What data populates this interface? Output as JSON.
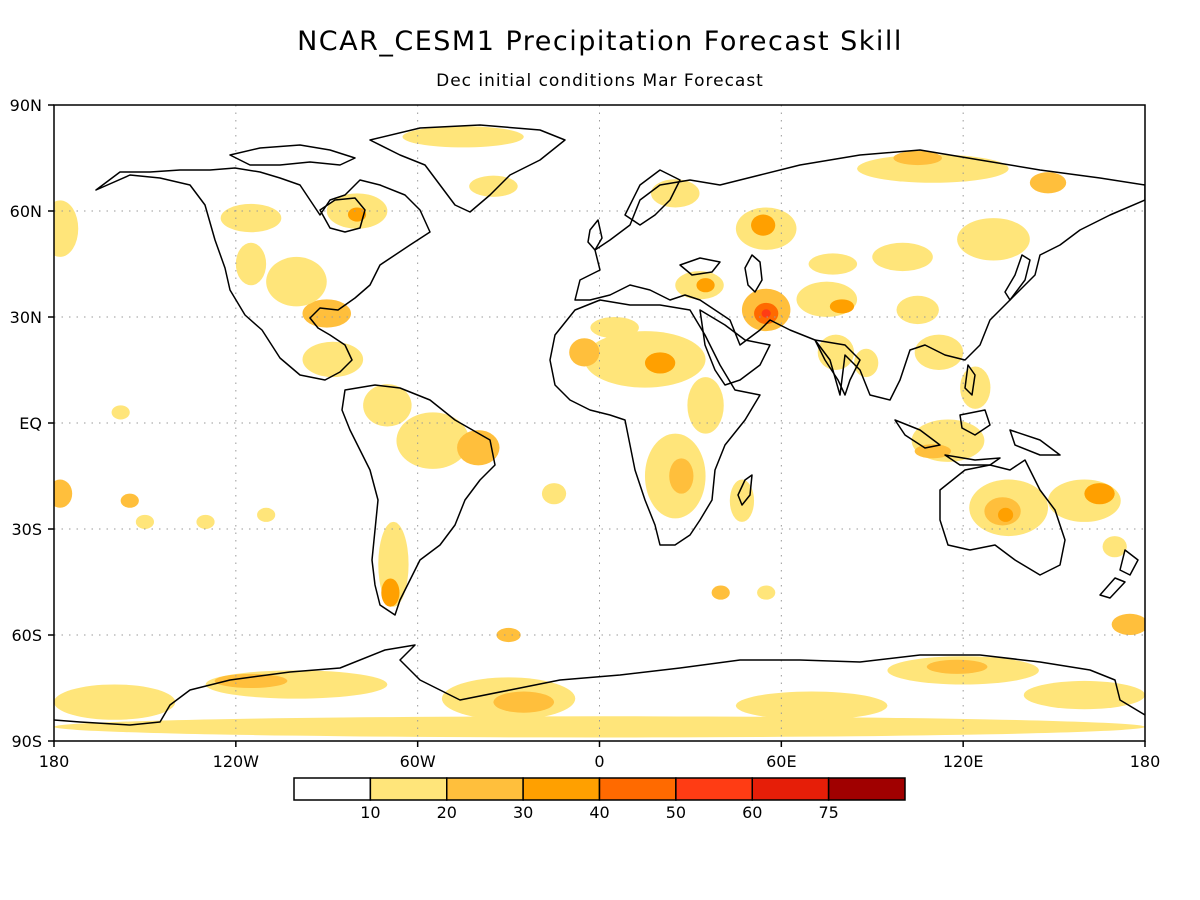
{
  "title": "NCAR_CESM1 Precipitation Forecast Skill",
  "subtitle": "Dec initial conditions  Mar Forecast",
  "map": {
    "projection": "equirectangular",
    "lon_range": [
      -180,
      180
    ],
    "lat_range": [
      -90,
      90
    ],
    "grid": "dotted",
    "lat_labels": [
      {
        "lat": 90,
        "text": "90N"
      },
      {
        "lat": 60,
        "text": "60N"
      },
      {
        "lat": 30,
        "text": "30N"
      },
      {
        "lat": 0,
        "text": "EQ"
      },
      {
        "lat": -30,
        "text": "30S"
      },
      {
        "lat": -60,
        "text": "60S"
      },
      {
        "lat": -90,
        "text": "90S"
      }
    ],
    "lon_labels": [
      {
        "lon": -180,
        "text": "180"
      },
      {
        "lon": -120,
        "text": "120W"
      },
      {
        "lon": -60,
        "text": "60W"
      },
      {
        "lon": 0,
        "text": "0"
      },
      {
        "lon": 60,
        "text": "60E"
      },
      {
        "lon": 120,
        "text": "120E"
      },
      {
        "lon": 180,
        "text": "180"
      }
    ]
  },
  "colorbar": {
    "colors": [
      "#ffffff",
      "#ffe57a",
      "#ffbf3c",
      "#ffa000",
      "#ff6a00",
      "#ff3c14",
      "#e61e08",
      "#a00000"
    ],
    "labels": [
      "10",
      "20",
      "30",
      "40",
      "50",
      "60",
      "75"
    ]
  },
  "skill_regions": [
    {
      "name": "antarctic-band",
      "lon": 0,
      "lat": -86,
      "rlon": 180,
      "rlat": 3,
      "level": 1
    },
    {
      "name": "weddell",
      "lon": -30,
      "lat": -78,
      "rlon": 22,
      "rlat": 6,
      "level": 1
    },
    {
      "name": "weddell-core",
      "lon": -25,
      "lat": -79,
      "rlon": 10,
      "rlat": 3,
      "level": 2
    },
    {
      "name": "bellingshausen",
      "lon": -100,
      "lat": -74,
      "rlon": 30,
      "rlat": 4,
      "level": 1
    },
    {
      "name": "bellingshausen-core",
      "lon": -115,
      "lat": -73,
      "rlon": 12,
      "rlat": 2,
      "level": 2
    },
    {
      "name": "ross-rim",
      "lon": -160,
      "lat": -79,
      "rlon": 20,
      "rlat": 5,
      "level": 1
    },
    {
      "name": "east-antarctica",
      "lon": 120,
      "lat": -70,
      "rlon": 25,
      "rlat": 4,
      "level": 1
    },
    {
      "name": "east-antarctica-core",
      "lon": 118,
      "lat": -69,
      "rlon": 10,
      "rlat": 2,
      "level": 2
    },
    {
      "name": "victoria-land",
      "lon": 160,
      "lat": -77,
      "rlon": 20,
      "rlat": 4,
      "level": 1
    },
    {
      "name": "amery",
      "lon": 70,
      "lat": -80,
      "rlon": 25,
      "rlat": 4,
      "level": 1
    },
    {
      "name": "australia",
      "lon": 135,
      "lat": -24,
      "rlon": 13,
      "rlat": 8,
      "level": 1
    },
    {
      "name": "australia-core",
      "lon": 133,
      "lat": -25,
      "rlon": 6,
      "rlat": 4,
      "level": 2
    },
    {
      "name": "australia-hot",
      "lon": 134,
      "lat": -26,
      "rlon": 2.5,
      "rlat": 2,
      "level": 3
    },
    {
      "name": "maritime-continent",
      "lon": 115,
      "lat": -5,
      "rlon": 12,
      "rlat": 6,
      "level": 1
    },
    {
      "name": "java",
      "lon": 110,
      "lat": -8,
      "rlon": 6,
      "rlat": 2,
      "level": 2
    },
    {
      "name": "philippines",
      "lon": 124,
      "lat": 10,
      "rlon": 5,
      "rlat": 6,
      "level": 1
    },
    {
      "name": "south-china",
      "lon": 112,
      "lat": 20,
      "rlon": 8,
      "rlat": 5,
      "level": 1
    },
    {
      "name": "coral-sea",
      "lon": 160,
      "lat": -22,
      "rlon": 12,
      "rlat": 6,
      "level": 1
    },
    {
      "name": "coral-sea-core",
      "lon": 165,
      "lat": -20,
      "rlon": 5,
      "rlat": 3,
      "level": 3
    },
    {
      "name": "iran",
      "lon": 55,
      "lat": 32,
      "rlon": 8,
      "rlat": 6,
      "level": 2
    },
    {
      "name": "iran-core",
      "lon": 55,
      "lat": 31,
      "rlon": 4,
      "rlat": 3,
      "level": 4
    },
    {
      "name": "iran-hot",
      "lon": 55,
      "lat": 31,
      "rlon": 1.5,
      "rlat": 1.2,
      "level": 5
    },
    {
      "name": "turkey",
      "lon": 33,
      "lat": 39,
      "rlon": 8,
      "rlat": 4,
      "level": 1
    },
    {
      "name": "turkey-core",
      "lon": 35,
      "lat": 39,
      "rlon": 3,
      "rlat": 2,
      "level": 3
    },
    {
      "name": "central-asia",
      "lon": 75,
      "lat": 35,
      "rlon": 10,
      "rlat": 5,
      "level": 1
    },
    {
      "name": "tibet",
      "lon": 80,
      "lat": 33,
      "rlon": 4,
      "rlat": 2,
      "level": 3
    },
    {
      "name": "kazakhstan",
      "lon": 77,
      "lat": 45,
      "rlon": 8,
      "rlat": 3,
      "level": 1
    },
    {
      "name": "russia-west",
      "lon": 55,
      "lat": 55,
      "rlon": 10,
      "rlat": 6,
      "level": 1
    },
    {
      "name": "russia-west-core",
      "lon": 54,
      "lat": 56,
      "rlon": 4,
      "rlat": 3,
      "level": 3
    },
    {
      "name": "scandinavia",
      "lon": 25,
      "lat": 65,
      "rlon": 8,
      "rlat": 4,
      "level": 1
    },
    {
      "name": "siberia-north",
      "lon": 110,
      "lat": 72,
      "rlon": 25,
      "rlat": 4,
      "level": 1
    },
    {
      "name": "taymyr",
      "lon": 105,
      "lat": 75,
      "rlon": 8,
      "rlat": 2,
      "level": 2
    },
    {
      "name": "kolyma",
      "lon": 148,
      "lat": 68,
      "rlon": 6,
      "rlat": 3,
      "level": 2
    },
    {
      "name": "russian-fareast",
      "lon": 130,
      "lat": 52,
      "rlon": 12,
      "rlat": 6,
      "level": 1
    },
    {
      "name": "north-africa",
      "lon": 15,
      "lat": 18,
      "rlon": 20,
      "rlat": 8,
      "level": 1
    },
    {
      "name": "sahel-core",
      "lon": 20,
      "lat": 17,
      "rlon": 5,
      "rlat": 3,
      "level": 3
    },
    {
      "name": "mali",
      "lon": -5,
      "lat": 20,
      "rlon": 5,
      "rlat": 4,
      "level": 2
    },
    {
      "name": "sahara",
      "lon": 5,
      "lat": 27,
      "rlon": 8,
      "rlat": 3,
      "level": 1
    },
    {
      "name": "east-africa",
      "lon": 35,
      "lat": 5,
      "rlon": 6,
      "rlat": 8,
      "level": 1
    },
    {
      "name": "southern-africa",
      "lon": 25,
      "lat": -15,
      "rlon": 10,
      "rlat": 12,
      "level": 1
    },
    {
      "name": "southern-africa-core",
      "lon": 27,
      "lat": -15,
      "rlon": 4,
      "rlat": 5,
      "level": 2
    },
    {
      "name": "madagascar",
      "lon": 47,
      "lat": -22,
      "rlon": 4,
      "rlat": 6,
      "level": 1
    },
    {
      "name": "amazon",
      "lon": -55,
      "lat": -5,
      "rlon": 12,
      "rlat": 8,
      "level": 1
    },
    {
      "name": "nw-south-america",
      "lon": -70,
      "lat": 5,
      "rlon": 8,
      "rlat": 6,
      "level": 1
    },
    {
      "name": "brazil-east",
      "lon": -40,
      "lat": -7,
      "rlon": 7,
      "rlat": 5,
      "level": 2
    },
    {
      "name": "argentina",
      "lon": -68,
      "lat": -40,
      "rlon": 5,
      "rlat": 12,
      "level": 1
    },
    {
      "name": "patagonia-core",
      "lon": -69,
      "lat": -48,
      "rlon": 3,
      "rlat": 4,
      "level": 3
    },
    {
      "name": "central-america",
      "lon": -88,
      "lat": 18,
      "rlon": 10,
      "rlat": 5,
      "level": 1
    },
    {
      "name": "gulf-coast",
      "lon": -90,
      "lat": 31,
      "rlon": 8,
      "rlat": 4,
      "level": 2
    },
    {
      "name": "us-plains",
      "lon": -100,
      "lat": 40,
      "rlon": 10,
      "rlat": 7,
      "level": 1
    },
    {
      "name": "us-west",
      "lon": -115,
      "lat": 45,
      "rlon": 5,
      "rlat": 6,
      "level": 1
    },
    {
      "name": "hudson",
      "lon": -80,
      "lat": 60,
      "rlon": 10,
      "rlat": 5,
      "level": 1
    },
    {
      "name": "hudson-core",
      "lon": -80,
      "lat": 59,
      "rlon": 3,
      "rlat": 2,
      "level": 3
    },
    {
      "name": "canada-west",
      "lon": -115,
      "lat": 58,
      "rlon": 10,
      "rlat": 4,
      "level": 1
    },
    {
      "name": "greenland-north",
      "lon": -45,
      "lat": 81,
      "rlon": 20,
      "rlat": 3,
      "level": 1
    },
    {
      "name": "greenland-east",
      "lon": -35,
      "lat": 67,
      "rlon": 8,
      "rlat": 3,
      "level": 1
    },
    {
      "name": "alaska-pacific",
      "lon": -178,
      "lat": 55,
      "rlon": 6,
      "rlat": 8,
      "level": 1
    },
    {
      "name": "pacific-south-1",
      "lon": -178,
      "lat": -20,
      "rlon": 4,
      "rlat": 4,
      "level": 2
    },
    {
      "name": "pacific-south-2",
      "lon": -155,
      "lat": -22,
      "rlon": 3,
      "rlat": 2,
      "level": 2
    },
    {
      "name": "pacific-south-3",
      "lon": -150,
      "lat": -28,
      "rlon": 3,
      "rlat": 2,
      "level": 1
    },
    {
      "name": "pacific-south-4",
      "lon": -130,
      "lat": -28,
      "rlon": 3,
      "rlat": 2,
      "level": 1
    },
    {
      "name": "pacific-south-5",
      "lon": -110,
      "lat": -26,
      "rlon": 3,
      "rlat": 2,
      "level": 1
    },
    {
      "name": "hawaii-area",
      "lon": -158,
      "lat": 3,
      "rlon": 3,
      "rlat": 2,
      "level": 1
    },
    {
      "name": "atlantic-south",
      "lon": -30,
      "lat": -60,
      "rlon": 4,
      "rlat": 2,
      "level": 2
    },
    {
      "name": "atlantic-east",
      "lon": -15,
      "lat": -20,
      "rlon": 4,
      "rlat": 3,
      "level": 1
    },
    {
      "name": "indian-ocean-1",
      "lon": 40,
      "lat": -48,
      "rlon": 3,
      "rlat": 2,
      "level": 2
    },
    {
      "name": "indian-ocean-2",
      "lon": 55,
      "lat": -48,
      "rlon": 3,
      "rlat": 2,
      "level": 1
    },
    {
      "name": "southern-ocean-nz",
      "lon": 175,
      "lat": -57,
      "rlon": 6,
      "rlat": 3,
      "level": 2
    },
    {
      "name": "tasman",
      "lon": 170,
      "lat": -35,
      "rlon": 4,
      "rlat": 3,
      "level": 1
    },
    {
      "name": "india",
      "lon": 78,
      "lat": 20,
      "rlon": 6,
      "rlat": 5,
      "level": 1
    },
    {
      "name": "bay-of-bengal",
      "lon": 88,
      "lat": 17,
      "rlon": 4,
      "rlat": 4,
      "level": 1
    },
    {
      "name": "mongolia",
      "lon": 100,
      "lat": 47,
      "rlon": 10,
      "rlat": 4,
      "level": 1
    },
    {
      "name": "china-central",
      "lon": 105,
      "lat": 32,
      "rlon": 7,
      "rlat": 4,
      "level": 1
    }
  ]
}
